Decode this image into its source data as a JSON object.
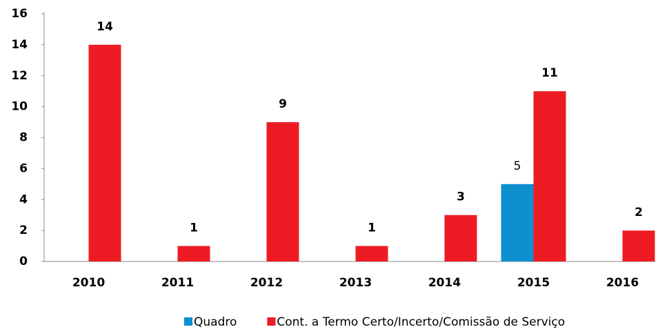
{
  "chart_data": {
    "type": "bar",
    "categories": [
      "2010",
      "2011",
      "2012",
      "2013",
      "2014",
      "2015",
      "2016"
    ],
    "series": [
      {
        "name": "Quadro",
        "color": "#0e8fce",
        "values": [
          null,
          null,
          null,
          null,
          null,
          5,
          null
        ]
      },
      {
        "name": "Cont. a Termo Certo/Incerto/Comissão de Serviço",
        "color": "#ed1c24",
        "values": [
          14,
          1,
          9,
          1,
          3,
          11,
          2
        ]
      }
    ],
    "ylim": [
      0,
      16
    ],
    "yticks": [
      0,
      2,
      4,
      6,
      8,
      10,
      12,
      14,
      16
    ],
    "grid": false,
    "legend": "bottom"
  }
}
